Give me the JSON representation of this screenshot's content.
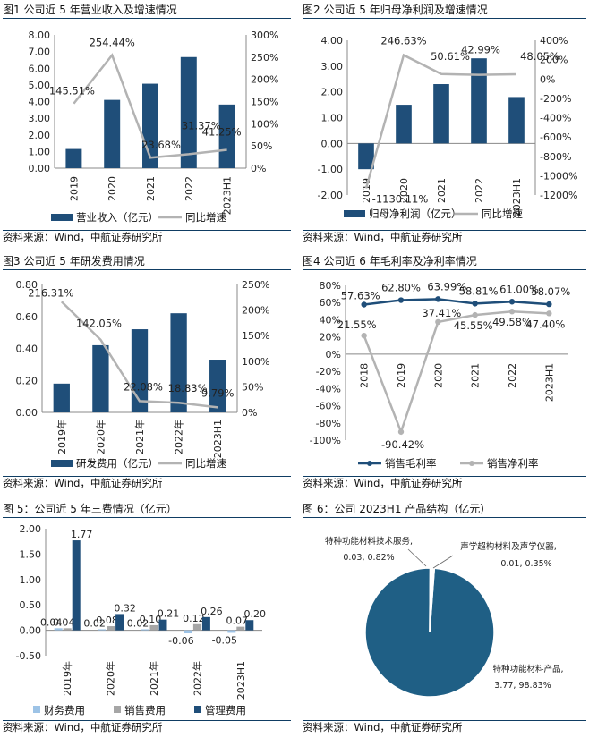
{
  "colors": {
    "bar": "#1f4e79",
    "line": "#b3b3b3",
    "grey_bar": "#a6a6a6",
    "light_bar": "#9dc3e6",
    "pie": "#1f5f85",
    "rule": "#0f3d63"
  },
  "source_text": "资料来源：Wind，中航证券研究所",
  "chart_data": [
    {
      "type": "bar",
      "title": "图1   公司近 5 年营业收入及增速情况",
      "categories": [
        "2019",
        "2020",
        "2021",
        "2022",
        "2023H1"
      ],
      "series": [
        {
          "name": "营业收入（亿元）",
          "kind": "bar",
          "axis": "left",
          "values": [
            1.15,
            4.1,
            5.07,
            6.67,
            3.82
          ]
        },
        {
          "name": "同比增速",
          "kind": "line",
          "axis": "right",
          "values": [
            145.51,
            254.44,
            23.68,
            31.37,
            41.25
          ],
          "labels": [
            "145.51%",
            "254.44%",
            "23.68%",
            "31.37%",
            "41.25%"
          ]
        }
      ],
      "left_ticks": [
        "0.00",
        "1.00",
        "2.00",
        "3.00",
        "4.00",
        "5.00",
        "6.00",
        "7.00",
        "8.00"
      ],
      "left_range": [
        0,
        8
      ],
      "right_ticks": [
        "0%",
        "50%",
        "100%",
        "150%",
        "200%",
        "250%",
        "300%"
      ],
      "right_range": [
        0,
        300
      ]
    },
    {
      "type": "bar",
      "title": "图2   公司近 5 年归母净利润及增速情况",
      "categories": [
        "2019",
        "2020",
        "2021",
        "2022",
        "2023H1"
      ],
      "series": [
        {
          "name": "归母净利润（亿元）",
          "kind": "bar",
          "axis": "left",
          "values": [
            -1.0,
            1.5,
            2.3,
            3.3,
            1.8
          ]
        },
        {
          "name": "同比增速",
          "kind": "line",
          "axis": "right",
          "values": [
            -1130.11,
            246.63,
            50.61,
            42.99,
            48.05
          ],
          "labels": [
            "-1130.11%",
            "246.63%",
            "50.61%",
            "42.99%",
            "48.05%"
          ]
        }
      ],
      "left_ticks": [
        "-2.00",
        "-1.00",
        "0.00",
        "1.00",
        "2.00",
        "3.00",
        "4.00"
      ],
      "left_range": [
        -2,
        4
      ],
      "right_ticks": [
        "-1200%",
        "-1000%",
        "-800%",
        "-600%",
        "-400%",
        "-200%",
        "0%",
        "200%",
        "400%"
      ],
      "right_range": [
        -1200,
        400
      ]
    },
    {
      "type": "bar",
      "title": "图3   公司近 5 年研发费用情况",
      "categories": [
        "2019年",
        "2020年",
        "2021年",
        "2022年",
        "2023H1"
      ],
      "series": [
        {
          "name": "研发费用（亿元）",
          "kind": "bar",
          "axis": "left",
          "values": [
            0.18,
            0.42,
            0.52,
            0.62,
            0.33
          ]
        },
        {
          "name": "同比增速",
          "kind": "line",
          "axis": "right",
          "values": [
            216.31,
            142.05,
            22.08,
            18.83,
            9.79
          ],
          "labels": [
            "216.31%",
            "142.05%",
            "22.08%",
            "18.83%",
            "9.79%"
          ]
        }
      ],
      "left_ticks": [
        "0.00",
        "0.20",
        "0.40",
        "0.60",
        "0.80"
      ],
      "left_range": [
        0,
        0.8
      ],
      "right_ticks": [
        "0%",
        "50%",
        "100%",
        "150%",
        "200%",
        "250%"
      ],
      "right_range": [
        0,
        250
      ]
    },
    {
      "type": "line",
      "title": "图4   公司近 6 年毛利率及净利率情况",
      "categories": [
        "2018",
        "2019",
        "2020",
        "2021",
        "2022",
        "2023H1"
      ],
      "series": [
        {
          "name": "销售毛利率",
          "values": [
            57.63,
            62.8,
            63.99,
            58.81,
            61.0,
            58.07
          ],
          "labels": [
            "57.63%",
            "62.80%",
            "63.99%",
            "58.81%",
            "61.00%",
            "58.07%"
          ]
        },
        {
          "name": "销售净利率",
          "values": [
            21.55,
            -90.42,
            37.41,
            45.55,
            49.58,
            47.4
          ],
          "labels": [
            "21.55%",
            "-90.42%",
            "37.41%",
            "45.55%",
            "49.58%",
            "47.40%"
          ]
        }
      ],
      "y_ticks": [
        "-100%",
        "-80%",
        "-60%",
        "-40%",
        "-20%",
        "0%",
        "20%",
        "40%",
        "60%",
        "80%"
      ],
      "ylim": [
        -100,
        80
      ]
    },
    {
      "type": "bar",
      "title": "图 5：公司近 5 年三费情况（亿元）",
      "categories": [
        "2019年",
        "2020年",
        "2021年",
        "2022年",
        "2023H1"
      ],
      "series": [
        {
          "name": "财务费用",
          "values": [
            0.04,
            0.02,
            0.02,
            -0.06,
            -0.05
          ],
          "labels": [
            "0.04",
            "0.02",
            "0.02",
            "-0.06",
            "-0.05"
          ]
        },
        {
          "name": "销售费用",
          "values": [
            0.04,
            0.08,
            0.1,
            0.12,
            0.07
          ],
          "labels": [
            "0.04",
            "0.08",
            "0.10",
            "0.12",
            "0.07"
          ]
        },
        {
          "name": "管理费用",
          "values": [
            1.77,
            0.32,
            0.21,
            0.26,
            0.2
          ],
          "labels": [
            "1.77",
            "0.32",
            "0.21",
            "0.26",
            "0.20"
          ]
        }
      ],
      "y_ticks": [
        "-0.50",
        "0.00",
        "0.50",
        "1.00",
        "1.50",
        "2.00"
      ],
      "ylim": [
        -0.5,
        2.0
      ]
    },
    {
      "type": "pie",
      "title": "图 6：公司 2023H1 产品结构（亿元）",
      "slices": [
        {
          "name": "特种功能材料产品",
          "value": 3.77,
          "percent": 98.83,
          "label": "特种功能材料产品,",
          "sublabel": "3.77, 98.83%"
        },
        {
          "name": "特种功能材料技术服务",
          "value": 0.03,
          "percent": 0.82,
          "label": "特种功能材料技术服务,",
          "sublabel": "0.03, 0.82%"
        },
        {
          "name": "声学超构材料及声学仪器",
          "value": 0.01,
          "percent": 0.35,
          "label": "声学超构材料及声学仪器,",
          "sublabel": "0.01, 0.35%"
        }
      ]
    }
  ]
}
